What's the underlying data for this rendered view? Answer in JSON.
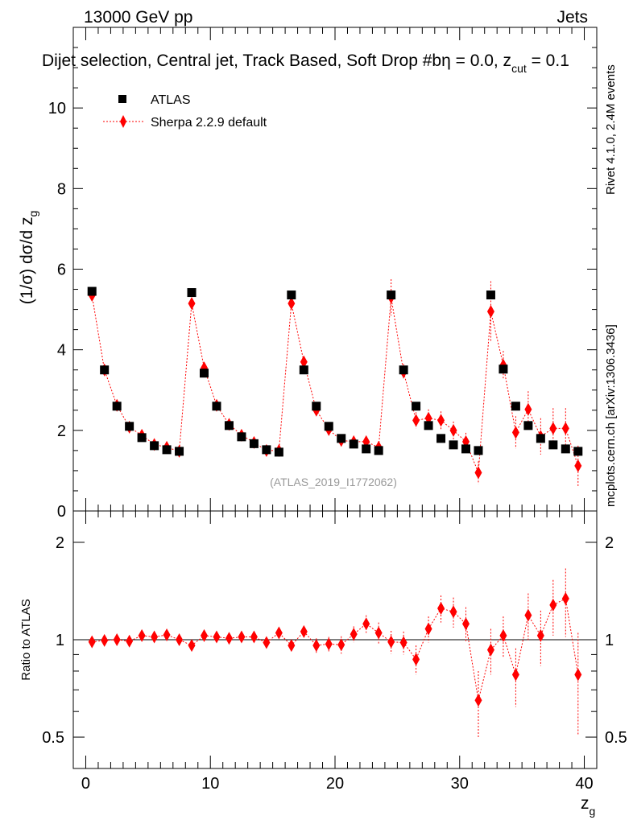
{
  "header": {
    "left": "13000 GeV pp",
    "right": "Jets",
    "title": "Dijet selection, Central jet, Track Based, Soft Drop #b",
    "title_suffix": "η = 0.0, z",
    "title_sub": "cut",
    "title_end": " = 0.1"
  },
  "side_labels": {
    "rivet": "Rivet 4.1.0,  2.4M events",
    "mcplots": "mcplots.cern.ch [arXiv:1306.3436]"
  },
  "watermark": "(ATLAS_2019_I1772062)",
  "legend": {
    "data_label": "ATLAS",
    "mc_label": "Sherpa 2.2.9 default"
  },
  "colors": {
    "data": "#000000",
    "mc": "#ff0000",
    "watermark": "#999999",
    "side": "#888888"
  },
  "chart_data": [
    {
      "type": "scatter",
      "panel": "main",
      "ylabel": "(1/σ) dσ/d z",
      "ylabel_sub": "g",
      "xlim": [
        -1,
        41
      ],
      "ylim": [
        0,
        12
      ],
      "y_ticks": [
        0,
        2,
        4,
        6,
        8,
        10
      ],
      "y_tick_labels": [
        "0",
        "2",
        "4",
        "6",
        "8",
        "10"
      ],
      "x": [
        0.5,
        1.5,
        2.5,
        3.5,
        4.5,
        5.5,
        6.5,
        7.5,
        8.5,
        9.5,
        10.5,
        11.5,
        12.5,
        13.5,
        14.5,
        15.5,
        16.5,
        17.5,
        18.5,
        19.5,
        20.5,
        21.5,
        22.5,
        23.5,
        24.5,
        25.5,
        26.5,
        27.5,
        28.5,
        29.5,
        30.5,
        31.5,
        32.5,
        33.5,
        34.5,
        35.5,
        36.5,
        37.5,
        38.5,
        39.5
      ],
      "series": [
        {
          "name": "ATLAS",
          "values": [
            5.45,
            3.5,
            2.6,
            2.1,
            1.82,
            1.62,
            1.52,
            1.48,
            5.42,
            3.42,
            2.6,
            2.12,
            1.84,
            1.67,
            1.52,
            1.46,
            5.36,
            3.5,
            2.6,
            2.1,
            1.8,
            1.66,
            1.54,
            1.5,
            5.36,
            3.5,
            2.6,
            2.12,
            1.8,
            1.64,
            1.54,
            1.5,
            5.36,
            3.52,
            2.6,
            2.12,
            1.8,
            1.64,
            1.54,
            1.48
          ]
        },
        {
          "name": "Sherpa 2.2.9 default",
          "values": [
            5.35,
            3.5,
            2.62,
            2.08,
            1.88,
            1.65,
            1.58,
            1.48,
            5.15,
            3.55,
            2.62,
            2.15,
            1.88,
            1.7,
            1.5,
            1.5,
            5.15,
            3.7,
            2.5,
            2.02,
            1.75,
            1.72,
            1.72,
            1.58,
            5.3,
            3.45,
            2.25,
            2.3,
            2.25,
            2.0,
            1.72,
            0.95,
            4.95,
            3.62,
            1.95,
            2.52,
            1.85,
            2.05,
            2.05,
            1.12
          ],
          "errors": [
            0.06,
            0.05,
            0.05,
            0.05,
            0.05,
            0.05,
            0.05,
            0.05,
            0.08,
            0.08,
            0.07,
            0.07,
            0.07,
            0.07,
            0.07,
            0.07,
            0.1,
            0.12,
            0.12,
            0.12,
            0.12,
            0.12,
            0.14,
            0.15,
            0.45,
            0.2,
            0.2,
            0.22,
            0.22,
            0.22,
            0.22,
            0.28,
            0.75,
            0.35,
            0.4,
            0.45,
            0.45,
            0.5,
            0.5,
            0.5
          ]
        }
      ]
    },
    {
      "type": "scatter",
      "panel": "ratio",
      "ylabel": "Ratio to ATLAS",
      "xlabel": "z",
      "xlabel_sub": "g",
      "xlim": [
        -1,
        41
      ],
      "ylim": [
        0.4,
        2.5
      ],
      "log_y": true,
      "x_ticks": [
        0,
        10,
        20,
        30,
        40
      ],
      "x_tick_labels": [
        "0",
        "10",
        "20",
        "30",
        "40"
      ],
      "y_ticks": [
        0.5,
        1,
        2
      ],
      "y_tick_labels": [
        "0.5",
        "1",
        "2"
      ],
      "x": [
        0.5,
        1.5,
        2.5,
        3.5,
        4.5,
        5.5,
        6.5,
        7.5,
        8.5,
        9.5,
        10.5,
        11.5,
        12.5,
        13.5,
        14.5,
        15.5,
        16.5,
        17.5,
        18.5,
        19.5,
        20.5,
        21.5,
        22.5,
        23.5,
        24.5,
        25.5,
        26.5,
        27.5,
        28.5,
        29.5,
        30.5,
        31.5,
        32.5,
        33.5,
        34.5,
        35.5,
        36.5,
        37.5,
        38.5,
        39.5
      ],
      "series": [
        {
          "name": "Sherpa 2.2.9 default",
          "values": [
            0.985,
            0.995,
            1.0,
            0.99,
            1.03,
            1.02,
            1.035,
            1.0,
            0.96,
            1.03,
            1.02,
            1.01,
            1.02,
            1.02,
            0.98,
            1.05,
            0.96,
            1.06,
            0.96,
            0.97,
            0.965,
            1.04,
            1.12,
            1.05,
            0.985,
            0.98,
            0.87,
            1.08,
            1.25,
            1.22,
            1.12,
            0.65,
            0.93,
            1.03,
            0.78,
            1.19,
            1.03,
            1.28,
            1.34,
            0.78
          ],
          "errors": [
            0.015,
            0.015,
            0.015,
            0.015,
            0.015,
            0.015,
            0.015,
            0.015,
            0.02,
            0.02,
            0.02,
            0.02,
            0.03,
            0.03,
            0.03,
            0.03,
            0.04,
            0.04,
            0.05,
            0.05,
            0.06,
            0.06,
            0.07,
            0.08,
            0.08,
            0.08,
            0.09,
            0.1,
            0.12,
            0.13,
            0.14,
            0.15,
            0.15,
            0.15,
            0.16,
            0.2,
            0.2,
            0.25,
            0.32,
            0.27
          ]
        }
      ]
    }
  ]
}
